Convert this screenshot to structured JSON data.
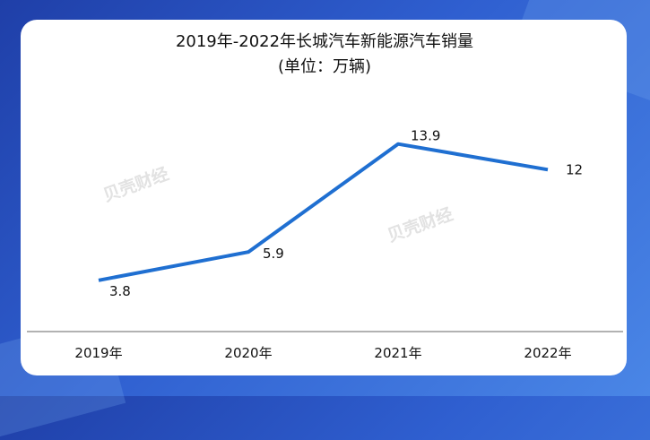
{
  "chart_data": {
    "type": "line",
    "title": "2019年-2022年长城汽车新能源汽车销量",
    "subtitle": "(单位：万辆)",
    "categories": [
      "2019年",
      "2020年",
      "2021年",
      "2022年"
    ],
    "series": [
      {
        "values": [
          3.8,
          5.9,
          13.9,
          12
        ],
        "color": "#1f6fd1"
      }
    ],
    "ylim": [
      0,
      17.2
    ],
    "grid": false,
    "legend": "none"
  },
  "watermarks": [
    "贝壳财经",
    "贝壳财经"
  ]
}
